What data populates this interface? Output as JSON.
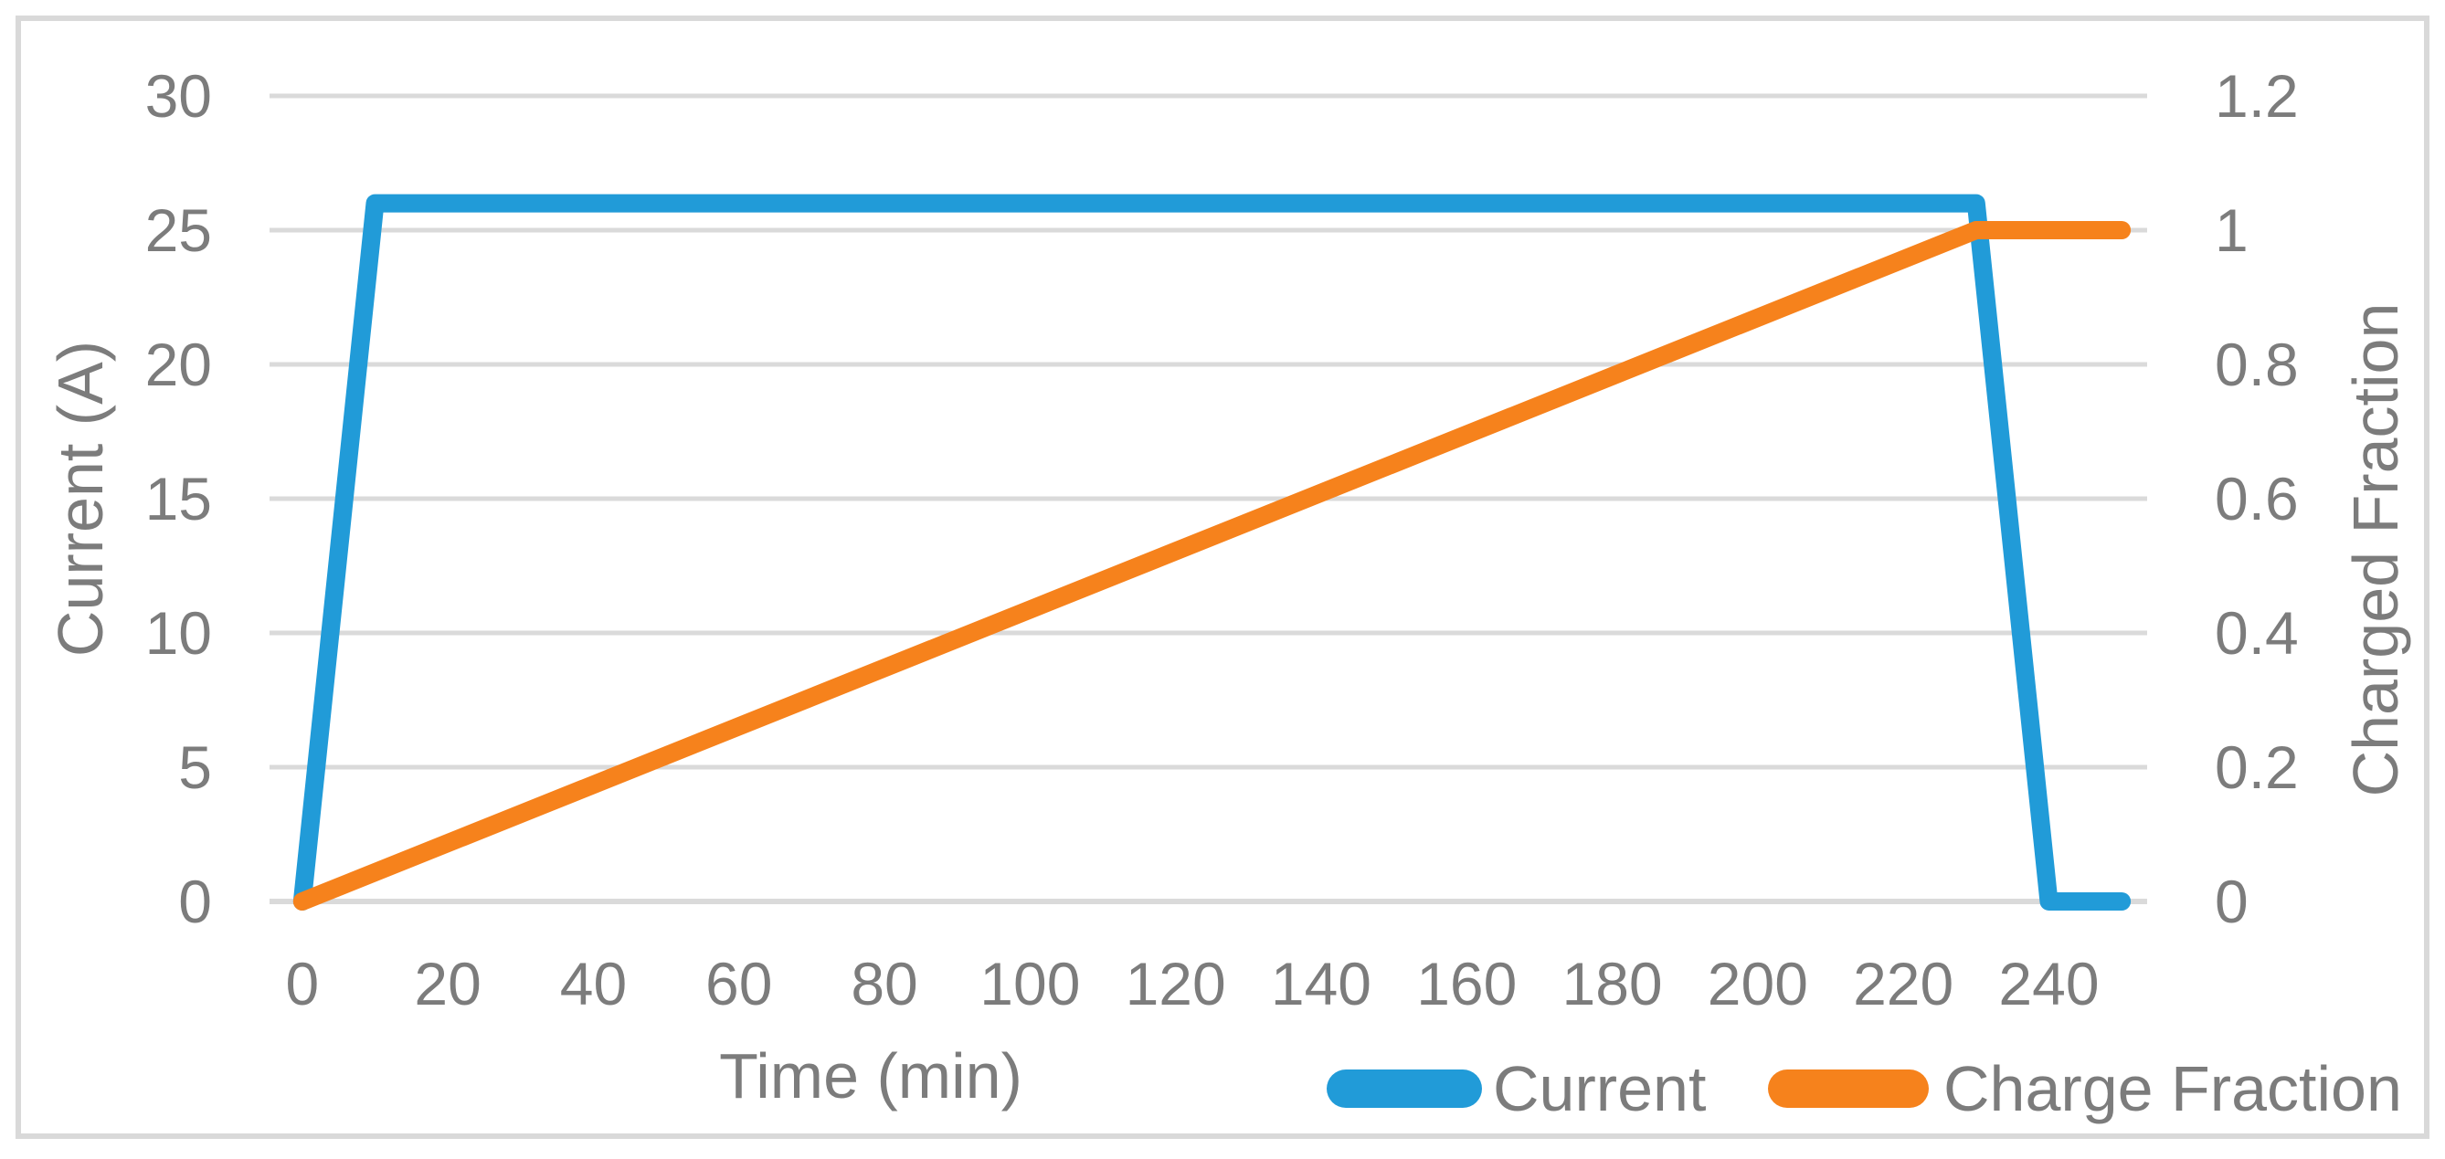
{
  "chart_data": {
    "type": "line",
    "title": "",
    "xlabel": "Time (min)",
    "ylabel_left": "Current (A)",
    "ylabel_right": "Charged Fraction",
    "grid": true,
    "legend_position": "bottom-right",
    "xlim": [
      -4.5,
      253.5
    ],
    "x_ticks": [
      0,
      20,
      40,
      60,
      80,
      100,
      120,
      140,
      160,
      180,
      200,
      220,
      240
    ],
    "x_tick_labels": [
      "0",
      "20",
      "40",
      "60",
      "80",
      "100",
      "120",
      "140",
      "160",
      "180",
      "200",
      "220",
      "240"
    ],
    "left_axis": {
      "label": "Current (A)",
      "lim": [
        0,
        30
      ],
      "ticks": [
        0,
        5,
        10,
        15,
        20,
        25,
        30
      ],
      "tick_labels": [
        "0",
        "5",
        "10",
        "15",
        "20",
        "25",
        "30"
      ]
    },
    "right_axis": {
      "label": "Charged Fraction",
      "lim": [
        0,
        1.2
      ],
      "ticks": [
        0,
        0.2,
        0.4,
        0.6,
        0.8,
        1,
        1.2
      ],
      "tick_labels": [
        "0",
        "0.2",
        "0.4",
        "0.6",
        "0.8",
        "1",
        "1.2"
      ]
    },
    "series": [
      {
        "name": "Current",
        "axis": "left",
        "color": "#219BD8",
        "x": [
          0,
          10,
          230,
          240,
          250
        ],
        "y": [
          0,
          26,
          26,
          0,
          0
        ]
      },
      {
        "name": "Charge Fraction",
        "axis": "right",
        "color": "#F6821C",
        "x": [
          0,
          230,
          250
        ],
        "y": [
          0,
          1,
          1
        ]
      }
    ],
    "colors": {
      "text": "#7C7C7C",
      "gridline": "#DADADA",
      "frame": "#D9D9D9",
      "background": "#FFFFFF"
    }
  }
}
